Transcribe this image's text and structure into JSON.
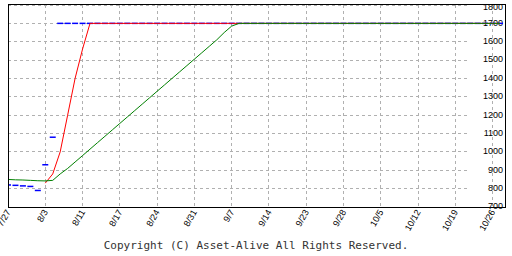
{
  "chart_data": {
    "type": "line",
    "annotation": "Copyright (C) Asset-Alive All Rights Reserved.",
    "categories": [
      "7/27",
      null,
      null,
      null,
      null,
      "8/3",
      null,
      null,
      null,
      null,
      "8/11",
      null,
      null,
      null,
      null,
      "8/17",
      null,
      null,
      null,
      null,
      "8/24",
      null,
      null,
      null,
      null,
      "8/31",
      null,
      null,
      null,
      null,
      "9/7",
      null,
      null,
      null,
      null,
      "9/14",
      null,
      null,
      null,
      null,
      "9/23",
      null,
      null,
      null,
      null,
      "9/28",
      null,
      null,
      null,
      null,
      "10/5",
      null,
      null,
      null,
      null,
      "10/12",
      null,
      null,
      null,
      null,
      "10/19",
      null,
      null,
      null,
      null,
      "10/26",
      null
    ],
    "series": [
      {
        "color": "#0000ff",
        "marker": "dash",
        "line_style": "none",
        "values": [
          820,
          818,
          815,
          812,
          790,
          930,
          1080,
          1700,
          1700,
          1700,
          1700,
          1700,
          1700,
          1700,
          1700,
          1700,
          1700,
          1700,
          1700,
          1700,
          1700,
          1700,
          1700,
          1700,
          1700,
          1700,
          1700,
          1700,
          1700,
          1700,
          1700,
          1700,
          1700,
          1700,
          1700,
          1700,
          1700,
          1700,
          1700,
          1700,
          1700,
          1700,
          1700,
          1700,
          1700,
          1700,
          1700,
          1700,
          1700,
          1700,
          1700,
          1700,
          1700,
          1700,
          1700,
          1700,
          1700,
          1700,
          1700,
          1700,
          1700,
          1700,
          1700,
          1700,
          1700,
          1700,
          1700
        ]
      },
      {
        "color": "#ff0000",
        "line_style": "solid",
        "values": [
          null,
          null,
          null,
          null,
          null,
          830,
          880,
          1000,
          1200,
          1400,
          1560,
          1700,
          1700,
          1700,
          1700,
          1700,
          1700,
          1700,
          1700,
          1700,
          1700,
          1700,
          1700,
          1700,
          1700,
          1700,
          1700,
          1700,
          1700,
          1700,
          1700,
          1700,
          1700,
          1700,
          1700,
          1700,
          1700,
          1700,
          1700,
          1700,
          1700,
          1700,
          1700,
          1700,
          1700,
          1700,
          1700,
          1700,
          1700,
          1700,
          1700,
          1700,
          1700,
          1700,
          1700,
          1700,
          1700,
          1700,
          1700,
          1700,
          1700,
          1700,
          1700,
          1700,
          1700,
          1700,
          1700
        ]
      },
      {
        "color": "#008000",
        "line_style": "solid",
        "values": [
          850,
          848,
          847,
          845,
          843,
          842,
          845,
          880,
          910,
          945,
          980,
          1015,
          1050,
          1085,
          1120,
          1155,
          1190,
          1225,
          1260,
          1295,
          1330,
          1365,
          1400,
          1435,
          1470,
          1505,
          1540,
          1575,
          1610,
          1650,
          1685,
          1700,
          1700,
          1700,
          1700,
          1700,
          1700,
          1700,
          1700,
          1700,
          1700,
          1700,
          1700,
          1700,
          1700,
          1700,
          1700,
          1700,
          1700,
          1700,
          1700,
          1700,
          1700,
          1700,
          1700,
          1700,
          1700,
          1700,
          1700,
          1700,
          1700,
          1700,
          1700,
          1700,
          1700,
          1700,
          1700
        ]
      }
    ],
    "ylim": [
      700,
      1800
    ],
    "yticks": [
      700,
      800,
      900,
      1000,
      1100,
      1200,
      1300,
      1400,
      1500,
      1600,
      1700,
      1800
    ],
    "grid": true
  }
}
